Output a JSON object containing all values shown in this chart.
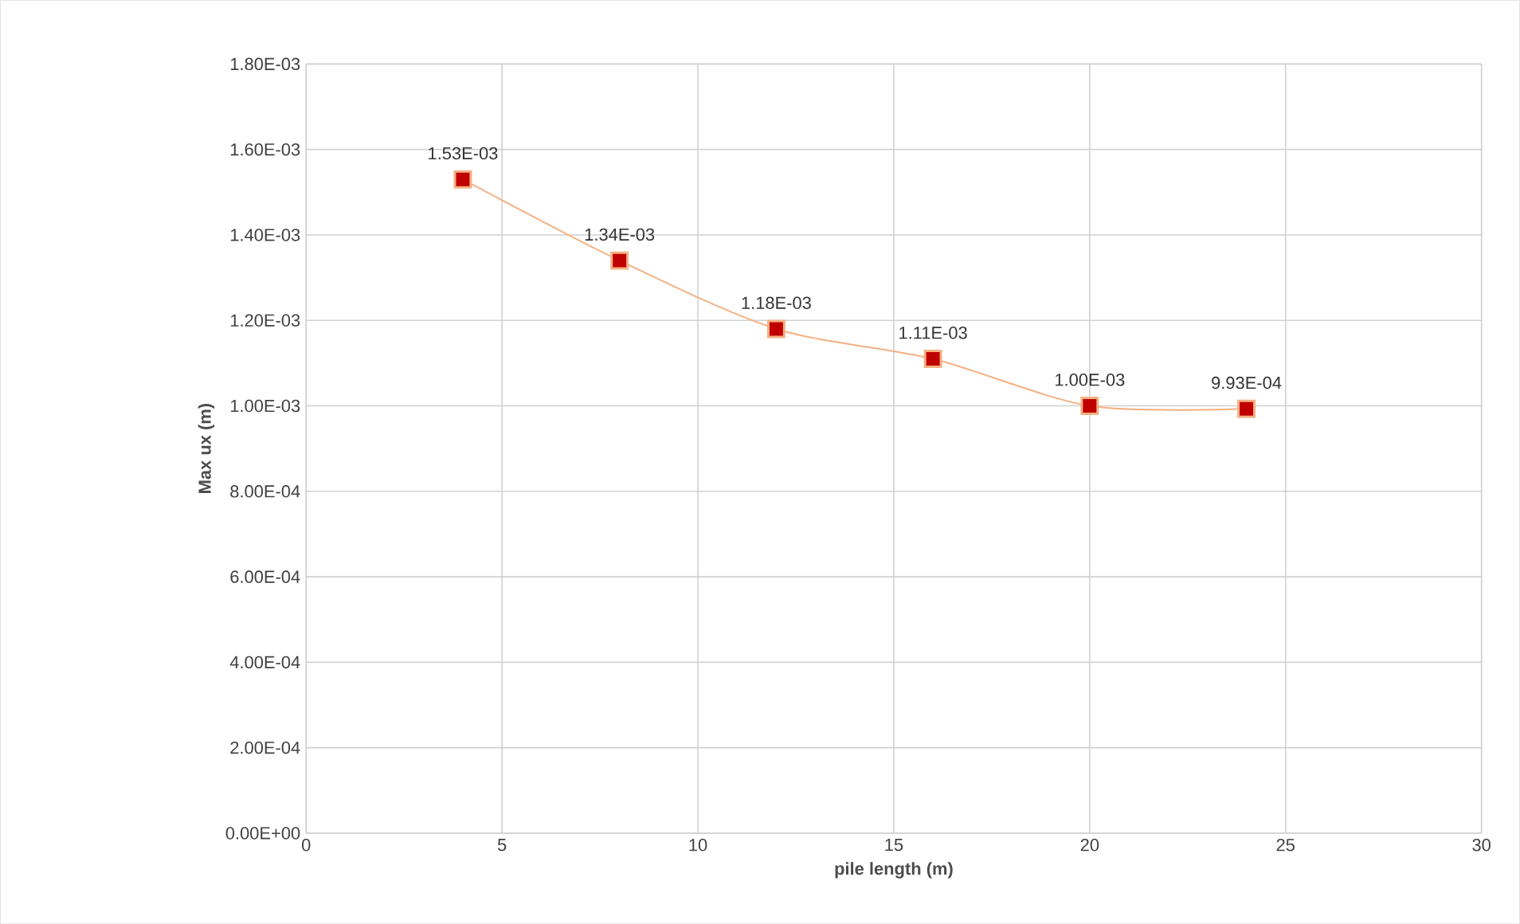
{
  "chart_data": {
    "type": "line",
    "xlabel": "pile length (m)",
    "ylabel": "Max ux (m)",
    "x": [
      4,
      8,
      12,
      16,
      20,
      24
    ],
    "series": [
      {
        "color": "#f4b183",
        "colors": [
          "#c00000",
          "#c00000",
          "#c00000",
          "#c00000",
          "#c00000",
          "#c00000"
        ],
        "values": [
          0.00153,
          0.00134,
          0.00118,
          0.00111,
          0.001,
          0.000993
        ],
        "value_labels": [
          "1.53E-03",
          "1.34E-03",
          "1.18E-03",
          "1.11E-03",
          "1.00E-03",
          "9.93E-04"
        ]
      }
    ],
    "xlim": [
      0,
      30
    ],
    "xticks": [
      0,
      5,
      10,
      15,
      20,
      25,
      30
    ],
    "ylim": [
      0,
      0.0018
    ],
    "yticks": [
      {
        "value": 0,
        "label": "0.00E+00"
      },
      {
        "value": 0.0002,
        "label": "2.00E-04"
      },
      {
        "value": 0.0004,
        "label": "4.00E-04"
      },
      {
        "value": 0.0006,
        "label": "6.00E-04"
      },
      {
        "value": 0.0008,
        "label": "8.00E-04"
      },
      {
        "value": 0.001,
        "label": "1.00E-03"
      },
      {
        "value": 0.0012,
        "label": "1.20E-03"
      },
      {
        "value": 0.0014,
        "label": "1.40E-03"
      },
      {
        "value": 0.0016,
        "label": "1.60E-03"
      },
      {
        "value": 0.0018,
        "label": "1.80E-03"
      }
    ],
    "grid": true,
    "marker": "square",
    "line_style": "solid"
  }
}
